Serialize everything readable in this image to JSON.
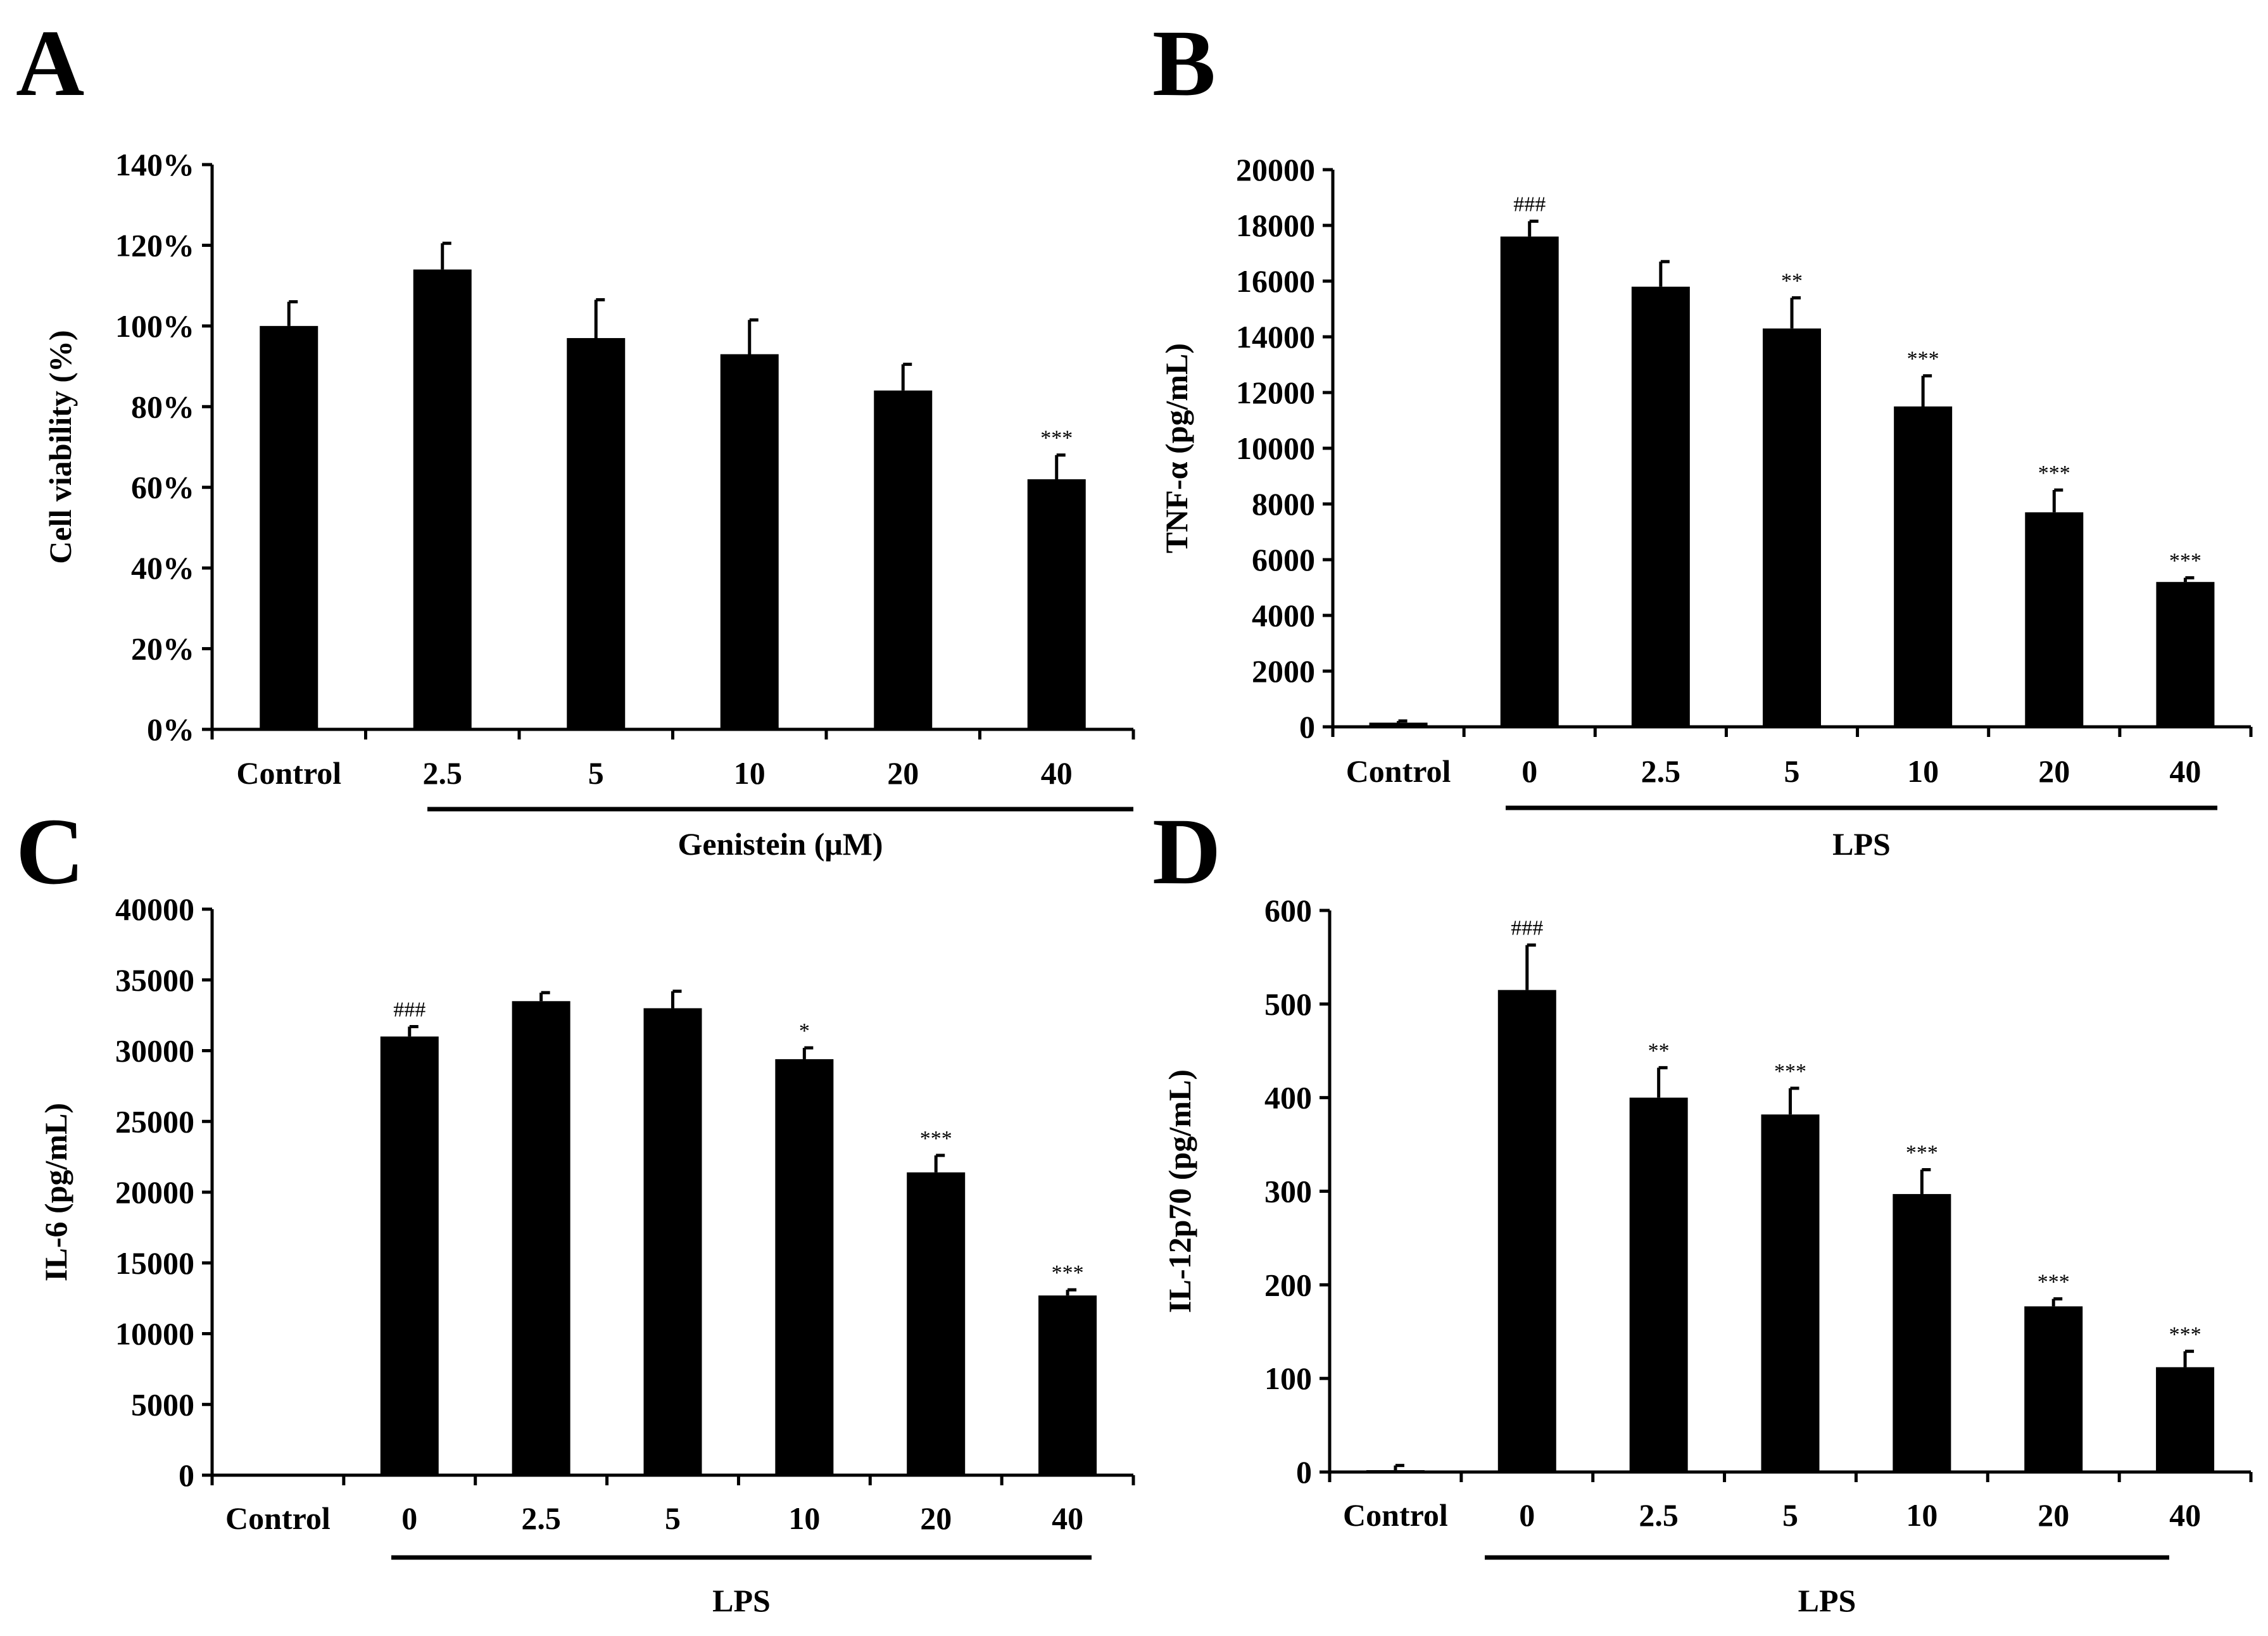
{
  "chart_data": [
    {
      "panel": "A",
      "type": "bar",
      "title": "",
      "ylabel": "Cell viability (%)",
      "xlabel": "Genistein (μM)",
      "categories": [
        "Control",
        "2.5",
        "5",
        "10",
        "20",
        "40"
      ],
      "values": [
        100,
        114,
        97,
        93,
        84,
        62
      ],
      "errors": [
        6,
        6.5,
        9.5,
        8.5,
        6.5,
        6
      ],
      "significance": [
        "",
        "",
        "",
        "",
        "",
        "***"
      ],
      "ylim": [
        0,
        140
      ],
      "yticks": [
        0,
        20,
        40,
        60,
        80,
        100,
        120,
        140
      ],
      "ytick_labels": [
        "0%",
        "20%",
        "40%",
        "60%",
        "80%",
        "100%",
        "120%",
        "140%"
      ],
      "group_label": "Genistein (μM)",
      "group_span": [
        1,
        5
      ],
      "bar_color": "#000000"
    },
    {
      "panel": "B",
      "type": "bar",
      "title": "",
      "ylabel": "TNF-α (pg/mL)",
      "xlabel": "LPS",
      "categories": [
        "Control",
        "0",
        "2.5",
        "5",
        "10",
        "20",
        "40"
      ],
      "values": [
        150,
        17600,
        15800,
        14300,
        11500,
        7700,
        5200
      ],
      "errors": [
        60,
        550,
        900,
        1100,
        1100,
        800,
        150
      ],
      "significance": [
        "",
        "###",
        "",
        "**",
        "***",
        "***",
        "***"
      ],
      "ylim": [
        0,
        20000
      ],
      "yticks": [
        0,
        2000,
        4000,
        6000,
        8000,
        10000,
        12000,
        14000,
        16000,
        18000,
        20000
      ],
      "ytick_labels": [
        "0",
        "2000",
        "4000",
        "6000",
        "8000",
        "10000",
        "12000",
        "14000",
        "16000",
        "18000",
        "20000"
      ],
      "group_label": "LPS",
      "group_span": [
        1,
        6
      ],
      "bar_color": "#000000"
    },
    {
      "panel": "C",
      "type": "bar",
      "title": "",
      "ylabel": "IL-6 (pg/mL)",
      "xlabel": "LPS",
      "categories": [
        "Control",
        "0",
        "2.5",
        "5",
        "10",
        "20",
        "40"
      ],
      "values": [
        0,
        31000,
        33500,
        33000,
        29400,
        21400,
        12700
      ],
      "errors": [
        0,
        700,
        600,
        1200,
        800,
        1200,
        400
      ],
      "significance": [
        "",
        "###",
        "",
        "",
        "*",
        "***",
        "***"
      ],
      "ylim": [
        0,
        40000
      ],
      "yticks": [
        0,
        5000,
        10000,
        15000,
        20000,
        25000,
        30000,
        35000,
        40000
      ],
      "ytick_labels": [
        "0",
        "5000",
        "10000",
        "15000",
        "20000",
        "25000",
        "30000",
        "35000",
        "40000"
      ],
      "group_label": "LPS",
      "group_span": [
        1,
        6
      ],
      "bar_color": "#000000"
    },
    {
      "panel": "D",
      "type": "bar",
      "title": "",
      "ylabel": "IL-12p70 (pg/mL)",
      "xlabel": "LPS",
      "categories": [
        "Control",
        "0",
        "2.5",
        "5",
        "10",
        "20",
        "40"
      ],
      "values": [
        2,
        515,
        400,
        382,
        297,
        177,
        112
      ],
      "errors": [
        5,
        48,
        32,
        28,
        26,
        8,
        17
      ],
      "significance": [
        "",
        "###",
        "**",
        "***",
        "***",
        "***",
        "***"
      ],
      "ylim": [
        0,
        600
      ],
      "yticks": [
        0,
        100,
        200,
        300,
        400,
        500,
        600
      ],
      "ytick_labels": [
        "0",
        "100",
        "200",
        "300",
        "400",
        "500",
        "600"
      ],
      "group_label": "LPS",
      "group_span": [
        1,
        6
      ],
      "bar_color": "#000000"
    }
  ]
}
